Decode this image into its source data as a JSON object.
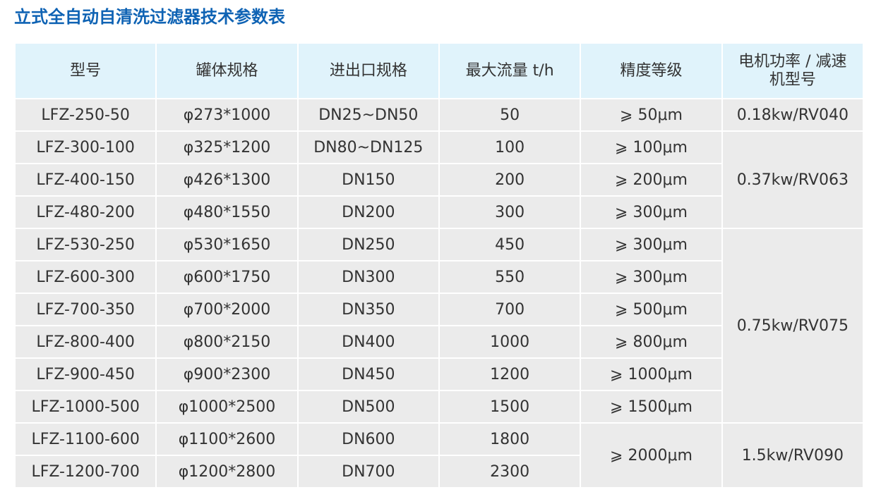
{
  "title": "立式全自动自清洗过滤器技术参数表",
  "headers": [
    "型号",
    "罐体规格",
    "进出口规格",
    "最大流量 t/h",
    "精度等级",
    "电机功率 / 减速机型号"
  ],
  "rows": [
    [
      "LFZ-250-50",
      "φ273*1000",
      "DN25~DN50",
      "50",
      "⩾ 50μm",
      "0.18kw/RV040"
    ],
    [
      "LFZ-300-100",
      "φ325*1200",
      "DN80~DN125",
      "100",
      "⩾ 100μm",
      "0.37kw/RV063"
    ],
    [
      "LFZ-400-150",
      "φ426*1300",
      "DN150",
      "200",
      "⩾ 200μm"
    ],
    [
      "LFZ-480-200",
      "φ480*1550",
      "DN200",
      "300",
      "⩾ 300μm"
    ],
    [
      "LFZ-530-250",
      "φ530*1650",
      "DN250",
      "450",
      "⩾ 300μm",
      "0.75kw/RV075"
    ],
    [
      "LFZ-600-300",
      "φ600*1750",
      "DN300",
      "550",
      "⩾ 300μm"
    ],
    [
      "LFZ-700-350",
      "φ700*2000",
      "DN350",
      "700",
      "⩾ 500μm"
    ],
    [
      "LFZ-800-400",
      "φ800*2150",
      "DN400",
      "1000",
      "⩾ 800μm"
    ],
    [
      "LFZ-900-450",
      "φ900*2300",
      "DN450",
      "1200",
      "⩾ 1000μm"
    ],
    [
      "LFZ-1000-500",
      "φ1000*2500",
      "DN500",
      "1500",
      "⩾ 1500μm"
    ],
    [
      "LFZ-1100-600",
      "φ1100*2600",
      "DN600",
      "1800",
      "⩾ 2000μm",
      "1.5kw/RV090"
    ],
    [
      "LFZ-1200-700",
      "φ1200*2800",
      "DN700",
      "2300"
    ]
  ],
  "colors": {
    "title": "#0f63b4",
    "header_bg": "#e0f3fb",
    "body_bg": "#ebebeb"
  }
}
